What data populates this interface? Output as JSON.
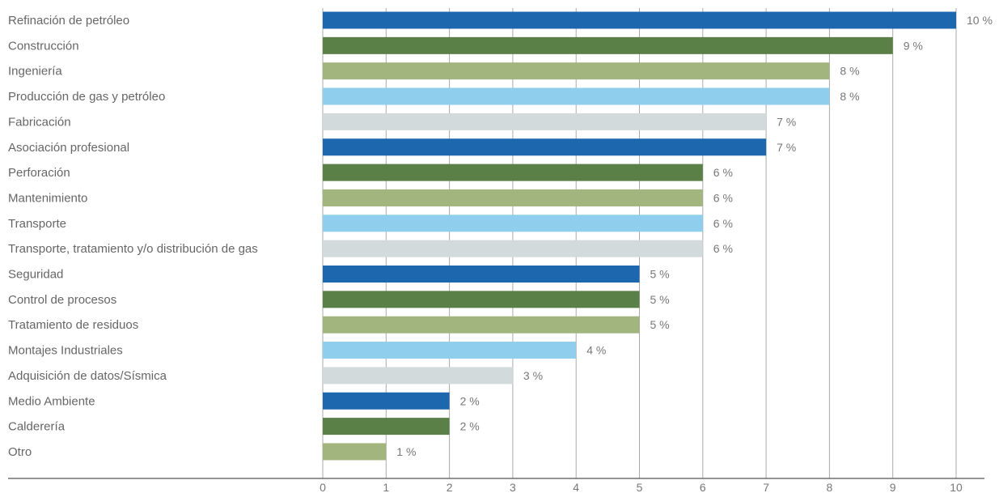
{
  "chart_data": {
    "type": "bar",
    "orientation": "horizontal",
    "categories": [
      "Refinación de petróleo",
      "Construcción",
      "Ingeniería",
      "Producción de gas y petróleo",
      "Fabricación",
      "Asociación profesional",
      "Perforación",
      "Mantenimiento",
      "Transporte",
      "Transporte, tratamiento y/o distribución de gas",
      "Seguridad",
      "Control de procesos",
      "Tratamiento de residuos",
      "Montajes Industriales",
      "Adquisición de datos/Sísmica",
      "Medio Ambiente",
      "Calderería",
      "Otro"
    ],
    "values": [
      10,
      9,
      8,
      8,
      7,
      7,
      6,
      6,
      6,
      6,
      5,
      5,
      5,
      4,
      3,
      2,
      2,
      1
    ],
    "value_labels": [
      "10 %",
      "9 %",
      "8 %",
      "8 %",
      "7 %",
      "7 %",
      "6 %",
      "6 %",
      "6 %",
      "6 %",
      "5 %",
      "5 %",
      "5 %",
      "4 %",
      "3 %",
      "2 %",
      "2 %",
      "1 %"
    ],
    "xlim": [
      0,
      10
    ],
    "xticks": [
      "0",
      "1",
      "2",
      "3",
      "4",
      "5",
      "6",
      "7",
      "8",
      "9",
      "10"
    ],
    "grid": "vertical",
    "title": "",
    "xlabel": "",
    "ylabel": "",
    "bar_color_cycle": [
      "#1c67ad",
      "#5a7f47",
      "#a2b57f",
      "#8fceec",
      "#d3dadb"
    ]
  }
}
